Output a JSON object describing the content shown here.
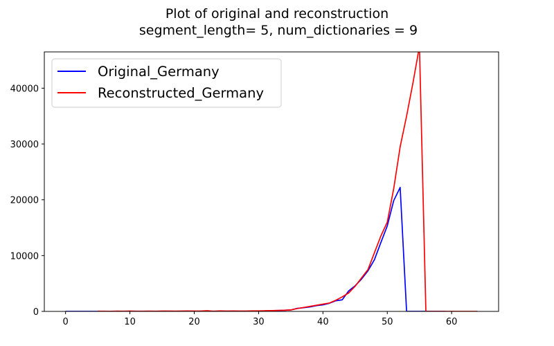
{
  "chart_data": {
    "type": "line",
    "title": "Plot of original and reconstruction",
    "subtitle": "segment_length= 5, num_dictionaries = 9",
    "xlim": [
      -3.3,
      67.3
    ],
    "ylim": [
      0,
      46500
    ],
    "x_ticks": [
      0,
      10,
      20,
      30,
      40,
      50,
      60
    ],
    "y_ticks": [
      0,
      10000,
      20000,
      30000,
      40000
    ],
    "grid": false,
    "legend_position": "top-left",
    "series": [
      {
        "name": "Original_Germany",
        "color": "#0000ff",
        "x": [
          0,
          1,
          2,
          3,
          4,
          5,
          6,
          7,
          8,
          9,
          10,
          11,
          12,
          13,
          14,
          15,
          16,
          17,
          18,
          19,
          20,
          21,
          22,
          23,
          24,
          25,
          26,
          27,
          28,
          29,
          30,
          31,
          32,
          33,
          34,
          35,
          36,
          37,
          38,
          39,
          40,
          41,
          42,
          43,
          44,
          45,
          46,
          47,
          48,
          49,
          50,
          51,
          52,
          53,
          54,
          55,
          56,
          57,
          58,
          59
        ],
        "y": [
          0,
          0,
          0,
          0,
          0,
          1,
          4,
          4,
          5,
          5,
          8,
          10,
          12,
          12,
          12,
          12,
          14,
          16,
          16,
          16,
          16,
          16,
          16,
          16,
          16,
          16,
          16,
          16,
          18,
          26,
          48,
          79,
          130,
          165,
          203,
          262,
          545,
          670,
          800,
          1040,
          1176,
          1457,
          1908,
          2078,
          3675,
          4585,
          5795,
          7272,
          9257,
          12327,
          15320,
          19848,
          22213,
          0,
          0,
          0,
          0,
          0,
          0,
          0
        ]
      },
      {
        "name": "Reconstructed_Germany",
        "color": "#ff0000",
        "x": [
          5,
          6,
          7,
          8,
          9,
          10,
          11,
          12,
          13,
          14,
          15,
          16,
          17,
          18,
          19,
          20,
          21,
          22,
          23,
          24,
          25,
          26,
          27,
          28,
          29,
          30,
          31,
          32,
          33,
          34,
          35,
          36,
          37,
          38,
          39,
          40,
          41,
          42,
          43,
          44,
          45,
          46,
          47,
          48,
          49,
          50,
          51,
          52,
          53,
          54,
          55,
          56,
          57,
          58,
          59,
          60,
          61,
          62,
          63,
          64
        ],
        "y": [
          30,
          40,
          20,
          50,
          30,
          60,
          40,
          30,
          50,
          40,
          60,
          70,
          50,
          60,
          80,
          60,
          70,
          120,
          40,
          90,
          60,
          80,
          70,
          60,
          90,
          100,
          120,
          150,
          180,
          200,
          260,
          500,
          700,
          900,
          1100,
          1300,
          1500,
          2000,
          2600,
          3300,
          4500,
          6000,
          7500,
          10500,
          13500,
          16000,
          22000,
          29500,
          35000,
          41000,
          47500,
          0,
          0,
          0,
          0,
          0,
          0,
          0,
          0,
          0
        ]
      }
    ]
  }
}
